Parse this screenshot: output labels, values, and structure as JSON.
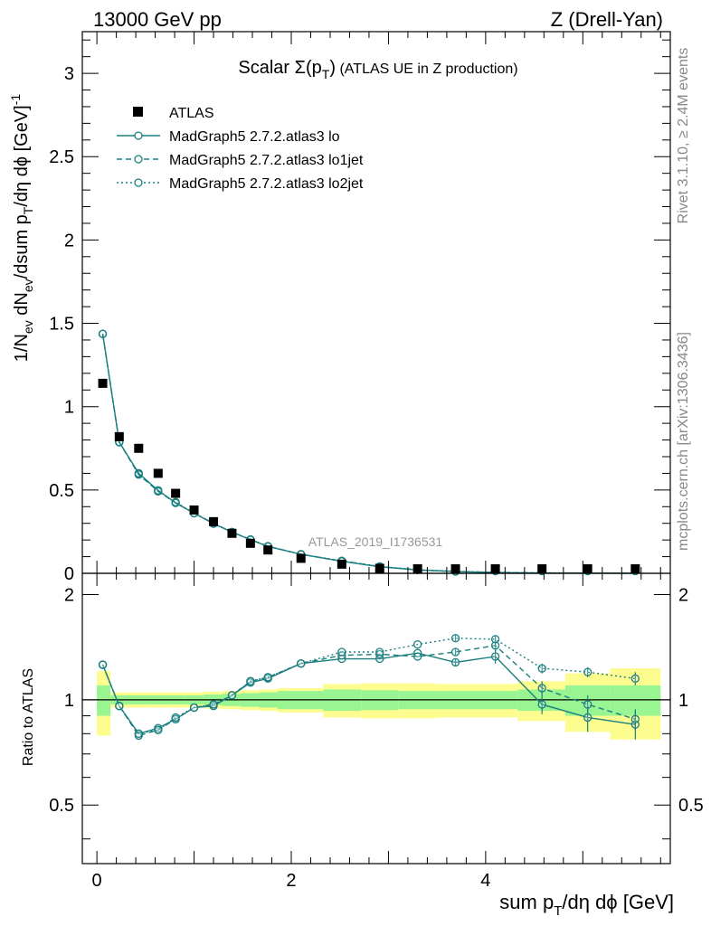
{
  "header": {
    "left": "13000 GeV pp",
    "right": "Z (Drell-Yan)"
  },
  "side_labels": {
    "rivet": "Rivet 3.1.10, ≥ 2.4M events",
    "mcplots": "mcplots.cern.ch [arXiv:1306.3436]"
  },
  "colors": {
    "data": "#000000",
    "mc": "#1a7f7f",
    "band_green": "#99f591",
    "band_yellow": "#fcfc8f"
  },
  "chart_data": {
    "type": "scatter",
    "title": "Scalar Σ(p_T) (ATLAS UE in Z production)",
    "watermark": "ATLAS_2019_I1736531",
    "xlabel": "sum p_T/dη dϕ [GeV]",
    "ylabel": "1/N_ev dN_ev/dsum p_T/dη dϕ [GeV]^-1",
    "ratio_ylabel": "Ratio to ATLAS",
    "xlim": [
      -0.15,
      5.9
    ],
    "ylim": [
      0,
      3.25
    ],
    "ratio_ylim": [
      0.34,
      2.3
    ],
    "x_ticks": [
      {
        "v": 0,
        "label": "0"
      },
      {
        "v": 2,
        "label": "2"
      },
      {
        "v": 4,
        "label": "4"
      }
    ],
    "y_ticks": [
      {
        "v": 0,
        "label": "0"
      },
      {
        "v": 0.5,
        "label": "0.5"
      },
      {
        "v": 1,
        "label": "1"
      },
      {
        "v": 1.5,
        "label": "1.5"
      },
      {
        "v": 2,
        "label": "2"
      },
      {
        "v": 2.5,
        "label": "2.5"
      },
      {
        "v": 3,
        "label": "3"
      }
    ],
    "ratio_ticks": [
      {
        "v": 0.5,
        "label": "0.5"
      },
      {
        "v": 1,
        "label": "1"
      },
      {
        "v": 2,
        "label": "2"
      }
    ],
    "x": [
      0.06,
      0.23,
      0.43,
      0.63,
      0.81,
      1.0,
      1.2,
      1.39,
      1.58,
      1.76,
      2.1,
      2.52,
      2.91,
      3.3,
      3.69,
      4.1,
      4.58,
      5.05,
      5.54
    ],
    "data": {
      "name": "ATLAS",
      "values": [
        1.14,
        0.82,
        0.75,
        0.6,
        0.48,
        0.38,
        0.31,
        0.24,
        0.18,
        0.14,
        0.09,
        0.055,
        0.03,
        0.015,
        0.008,
        0.004,
        0.002,
        0.0012,
        0.0007
      ]
    },
    "band_edges": [
      0.0,
      0.14,
      0.33,
      0.53,
      0.72,
      0.91,
      1.1,
      1.29,
      1.48,
      1.67,
      1.86,
      2.33,
      2.72,
      3.1,
      3.49,
      3.88,
      4.33,
      4.82,
      5.28,
      5.8
    ],
    "band_stat": [
      0.1,
      0.03,
      0.03,
      0.03,
      0.03,
      0.03,
      0.035,
      0.04,
      0.045,
      0.05,
      0.06,
      0.07,
      0.065,
      0.06,
      0.06,
      0.06,
      0.07,
      0.1,
      0.1
    ],
    "band_total": [
      0.21,
      0.05,
      0.05,
      0.05,
      0.05,
      0.05,
      0.055,
      0.06,
      0.065,
      0.07,
      0.08,
      0.11,
      0.115,
      0.115,
      0.11,
      0.11,
      0.13,
      0.19,
      0.23
    ],
    "series": [
      {
        "name": "MadGraph5 2.7.2.atlas3 lo",
        "style": "solid",
        "ratio": [
          1.26,
          0.96,
          0.8,
          0.83,
          0.88,
          0.95,
          0.96,
          1.03,
          1.12,
          1.15,
          1.27,
          1.31,
          1.31,
          1.36,
          1.28,
          1.33,
          0.97,
          0.89,
          0.85
        ],
        "ratio_err": [
          0,
          0,
          0,
          0,
          0,
          0,
          0,
          0,
          0,
          0,
          0,
          0,
          0,
          0,
          0.03,
          0.06,
          0.06,
          0.08,
          0.08
        ]
      },
      {
        "name": "MadGraph5 2.7.2.atlas3 lo1jet",
        "style": "dashed",
        "ratio": [
          1.26,
          0.96,
          0.79,
          0.82,
          0.88,
          0.95,
          0.97,
          1.03,
          1.13,
          1.16,
          1.27,
          1.34,
          1.35,
          1.33,
          1.37,
          1.43,
          1.08,
          0.97,
          0.88
        ],
        "ratio_err": [
          0,
          0,
          0,
          0,
          0,
          0,
          0,
          0,
          0,
          0,
          0,
          0,
          0,
          0,
          0.03,
          0.05,
          0.05,
          0.06,
          0.06
        ]
      },
      {
        "name": "MadGraph5 2.7.2.atlas3 lo2jet",
        "style": "dotted",
        "ratio": [
          1.26,
          0.96,
          0.8,
          0.82,
          0.89,
          0.95,
          0.97,
          1.03,
          1.13,
          1.16,
          1.27,
          1.37,
          1.37,
          1.44,
          1.5,
          1.49,
          1.23,
          1.2,
          1.15
        ],
        "ratio_err": [
          0,
          0,
          0,
          0,
          0,
          0,
          0,
          0,
          0,
          0,
          0,
          0,
          0,
          0,
          0.03,
          0.04,
          0.04,
          0.04,
          0.05
        ]
      }
    ]
  }
}
